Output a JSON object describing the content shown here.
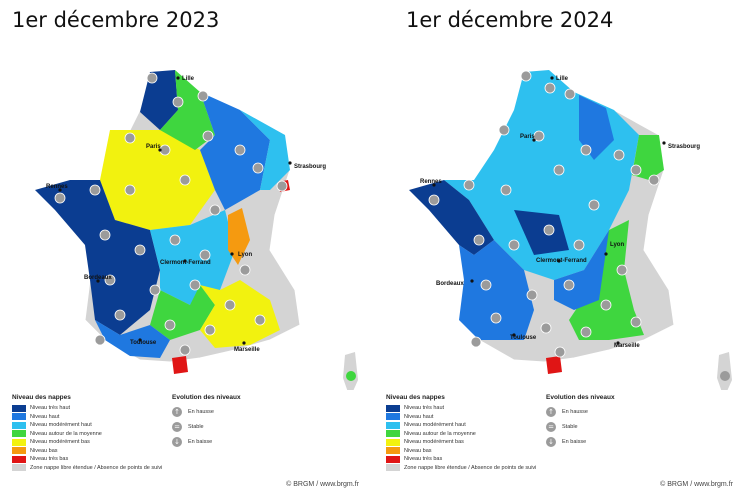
{
  "colors": {
    "tres_haut": "#0b3d91",
    "haut": "#1f78e0",
    "mod_haut": "#2ec0ef",
    "moyenne": "#3fd63f",
    "mod_bas": "#f2f20f",
    "bas": "#f59a10",
    "tres_bas": "#e01515",
    "absence": "#d4d4d4",
    "arrow": "#9b9b9b"
  },
  "legend": {
    "niveau_title": "Niveau des nappes",
    "levels": [
      {
        "key": "tres_haut",
        "label": "Niveau très haut"
      },
      {
        "key": "haut",
        "label": "Niveau haut"
      },
      {
        "key": "mod_haut",
        "label": "Niveau modérément haut"
      },
      {
        "key": "moyenne",
        "label": "Niveau autour de la moyenne"
      },
      {
        "key": "mod_bas",
        "label": "Niveau modérément bas"
      },
      {
        "key": "bas",
        "label": "Niveau bas"
      },
      {
        "key": "tres_bas",
        "label": "Niveau très bas"
      },
      {
        "key": "absence",
        "label": "Zone nappe libre étendue / Absence de points de suivi"
      }
    ],
    "evolution_title": "Evolution des niveaux",
    "evolution": [
      {
        "icon": "arrow-up-icon",
        "glyph": "↑",
        "label": "En hausse"
      },
      {
        "icon": "equal-icon",
        "glyph": "=",
        "label": "Stable"
      },
      {
        "icon": "arrow-down-icon",
        "glyph": "↓",
        "label": "En baisse"
      }
    ],
    "credit": "© BRGM / www.brgm.fr"
  },
  "maps": [
    {
      "title": "1er décembre 2023",
      "cities": [
        "Lille",
        "Paris",
        "Strasbourg",
        "Rennes",
        "Lyon",
        "Clermont-Ferrand",
        "Bordeaux",
        "Toulouse",
        "Marseille"
      ],
      "dominant": [
        "tres_haut",
        "mod_bas",
        "mod_haut",
        "moyenne",
        "bas",
        "tres_bas"
      ]
    },
    {
      "title": "1er décembre 2024",
      "cities": [
        "Lille",
        "Paris",
        "Strasbourg",
        "Rennes",
        "Lyon",
        "Clermont-Ferrand",
        "Bordeaux",
        "Toulouse",
        "Marseille"
      ],
      "dominant": [
        "mod_haut",
        "haut",
        "tres_haut",
        "moyenne",
        "tres_bas"
      ]
    }
  ]
}
